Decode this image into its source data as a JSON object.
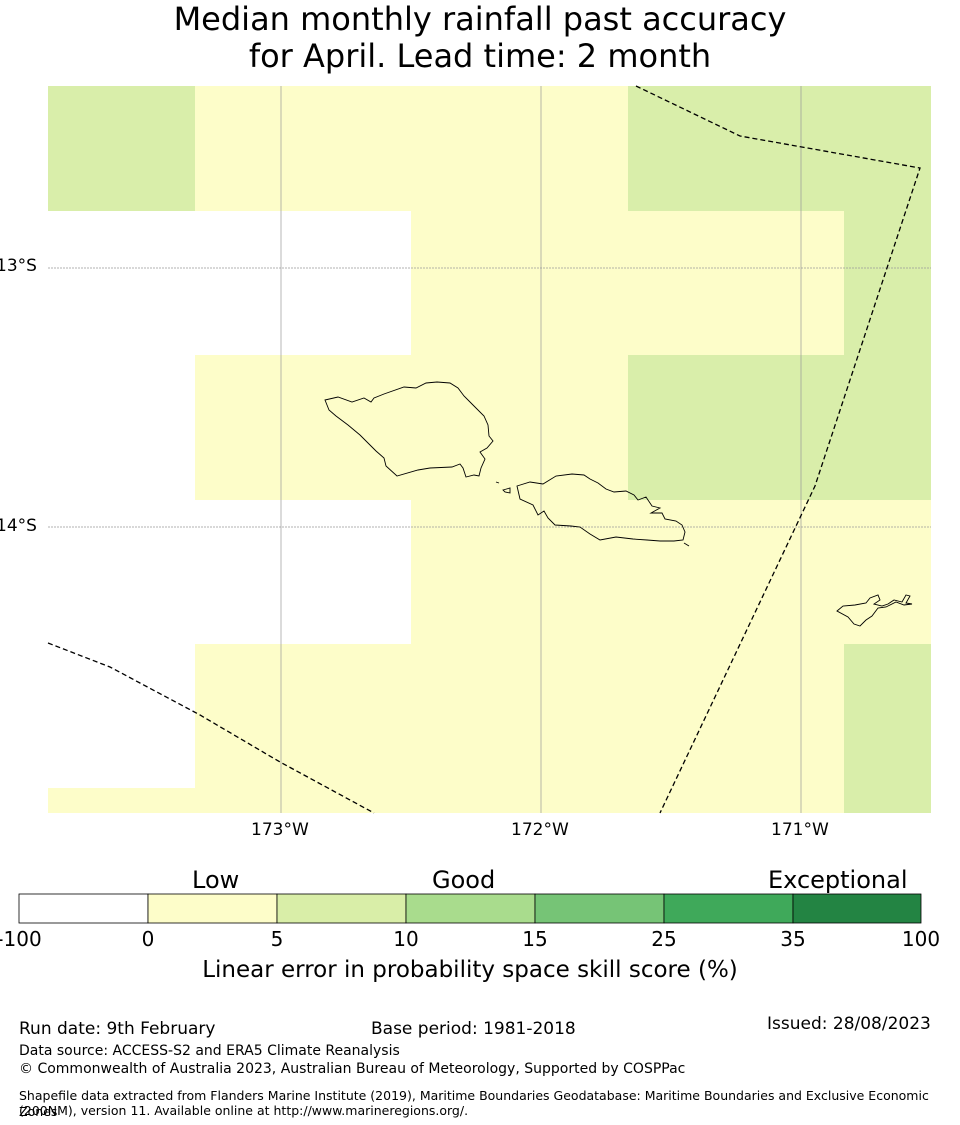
{
  "title": {
    "line1": "Median monthly rainfall past accuracy",
    "line2": "for April. Lead time: 2 month"
  },
  "map": {
    "latitude_labels": [
      "13°S",
      "14°S"
    ],
    "longitude_labels": [
      "173°W",
      "172°W",
      "171°W"
    ],
    "colors": {
      "low": "#fdfdc9",
      "moderate": "#d9eeaa",
      "none": "#ffffff"
    }
  },
  "colorbar": {
    "categories": [
      "Low",
      "Good",
      "Exceptional"
    ],
    "ticks": [
      "-100",
      "0",
      "5",
      "10",
      "15",
      "25",
      "35",
      "100"
    ],
    "colors": [
      "#ffffff",
      "#fdfdc9",
      "#d9eea8",
      "#a9dc8d",
      "#76c476",
      "#3fa95a",
      "#238443"
    ],
    "label": "Linear error in probability space skill score (%)"
  },
  "footer": {
    "run_date": "Run date: 9th February",
    "base_period": "Base period: 1981-2018",
    "issued": "Issued: 28/08/2023",
    "data_source": "Data source: ACCESS-S2 and ERA5 Climate Reanalysis",
    "copyright": "© Commonwealth of Australia 2023, Australian Bureau of Meteorology, Supported by COSPPac",
    "shapefile_line1": "Shapefile data extracted from Flanders Marine Institute (2019), Maritime Boundaries Geodatabase: Maritime Boundaries and Exclusive Economic Zones",
    "shapefile_line2": "(200NM), version 11. Available online at http://www.marineregions.org/."
  }
}
